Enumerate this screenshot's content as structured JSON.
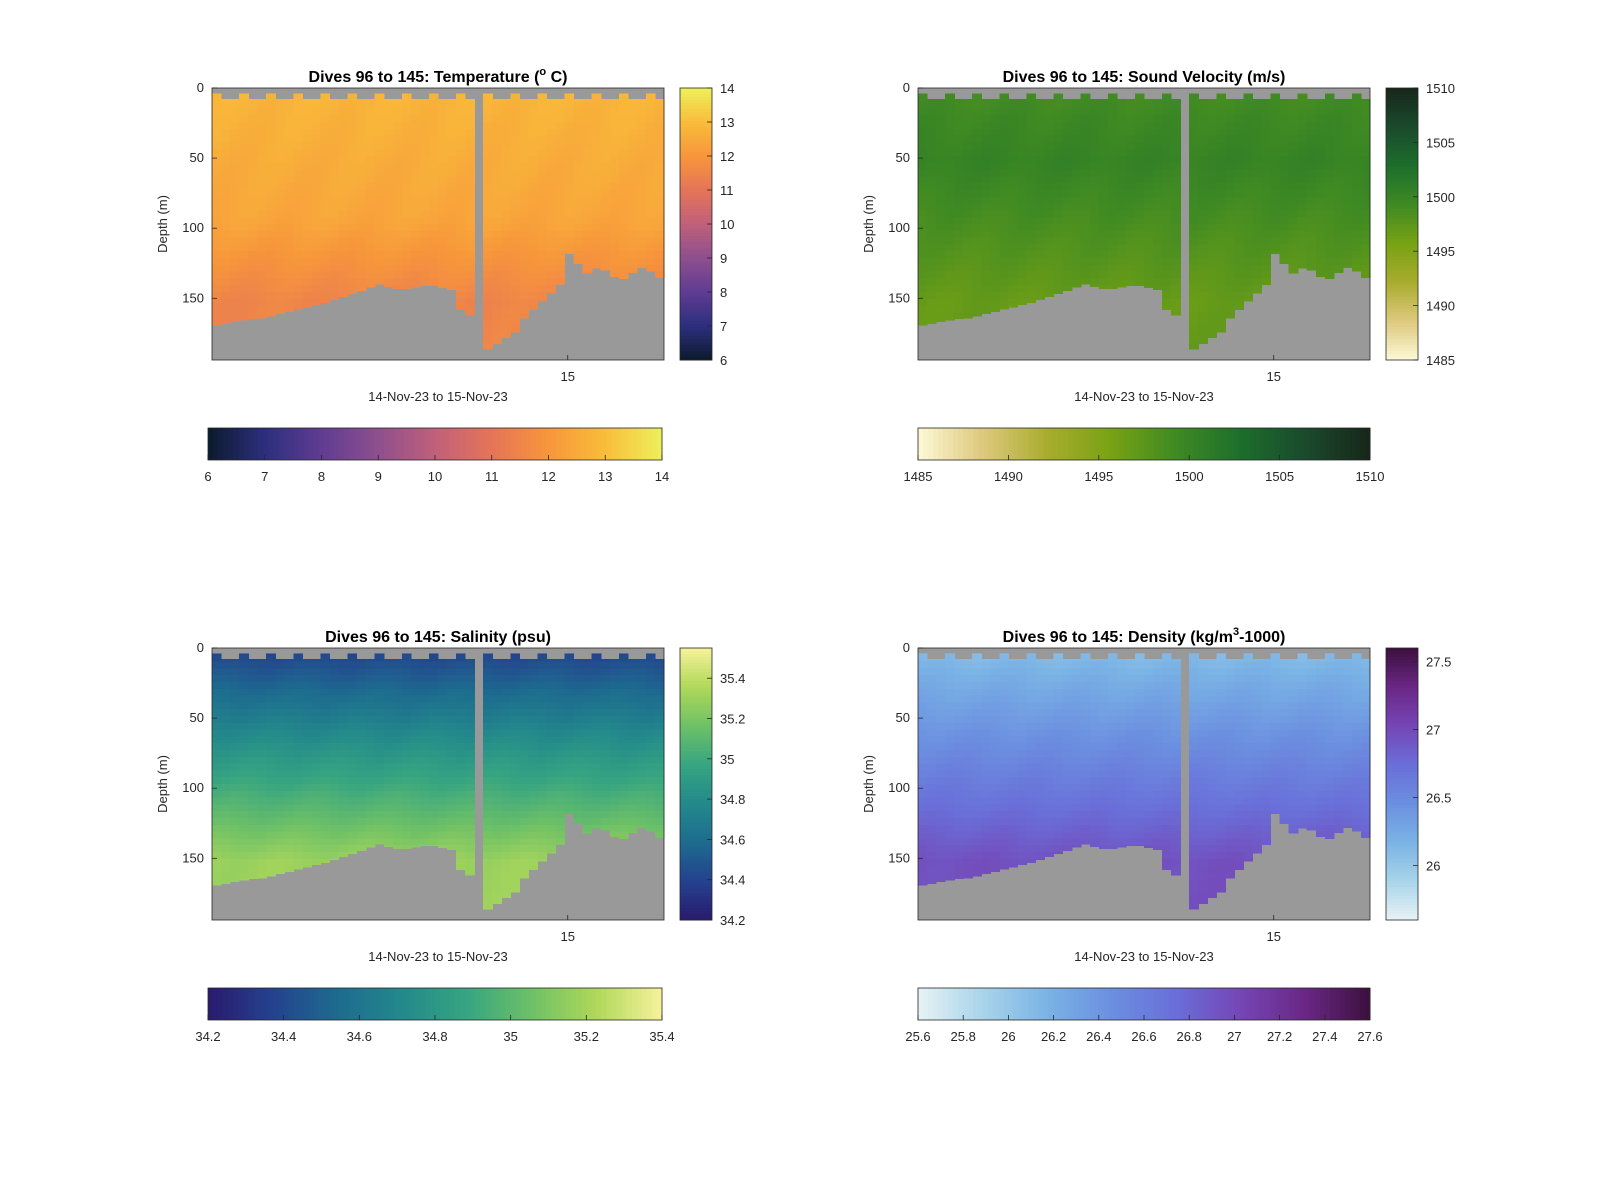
{
  "figure": {
    "background": "#ffffff",
    "land_color": "#999999",
    "date_range_label": "14-Nov-23 to 15-Nov-23",
    "ylabel": "Depth (m)"
  },
  "chart_data": [
    {
      "type": "heatmap",
      "id": "temperature",
      "title": "Dives 96 to 145: Temperature (",
      "title_sup": "o",
      "title_post": " C)",
      "xlabel": "14-Nov-23 to 15-Nov-23",
      "ylabel": "Depth (m)",
      "x_ticks": [
        {
          "value": 1,
          "label": "15"
        }
      ],
      "ylim": [
        0,
        194
      ],
      "y_ticks": [
        0,
        50,
        100,
        150
      ],
      "y_reversed": true,
      "clim": [
        6,
        14
      ],
      "colormap": [
        "#0a1a2c",
        "#2c2f7e",
        "#603c92",
        "#8e4f8e",
        "#c0607a",
        "#e57458",
        "#f7963b",
        "#f9bd3a",
        "#eef05c"
      ],
      "colorbar_ticks": [
        6,
        7,
        8,
        9,
        10,
        11,
        12,
        13,
        14
      ],
      "horizontal_colorbar_ticks": [
        6,
        7,
        8,
        9,
        10,
        11,
        12,
        13,
        14
      ],
      "profile": {
        "surface_value": 12.8,
        "mid_depth": 90,
        "mid_value": 12.4,
        "deep_value": 11.5
      }
    },
    {
      "type": "heatmap",
      "id": "sound_velocity",
      "title": "Dives 96 to 145: Sound Velocity (m/s)",
      "title_sup": "",
      "title_post": "",
      "xlabel": "14-Nov-23 to 15-Nov-23",
      "ylabel": "Depth (m)",
      "x_ticks": [
        {
          "value": 1,
          "label": "15"
        }
      ],
      "ylim": [
        0,
        194
      ],
      "y_ticks": [
        0,
        50,
        100,
        150
      ],
      "y_reversed": true,
      "clim": [
        1485,
        1510
      ],
      "colormap": [
        "#fdf8d6",
        "#ddc97c",
        "#a9ac2e",
        "#77a214",
        "#3f8a23",
        "#1c6e2c",
        "#1b4a2c",
        "#16261a"
      ],
      "colorbar_ticks": [
        1485,
        1490,
        1495,
        1500,
        1505,
        1510
      ],
      "horizontal_colorbar_ticks": [
        1485,
        1490,
        1495,
        1500,
        1505,
        1510
      ],
      "profile": {
        "surface_value": 1499.0,
        "mid_depth": 50,
        "mid_value": 1500.2,
        "deep_value": 1496.8
      }
    },
    {
      "type": "heatmap",
      "id": "salinity",
      "title": "Dives 96 to 145: Salinity (psu)",
      "title_sup": "",
      "title_post": "",
      "xlabel": "14-Nov-23 to 15-Nov-23",
      "ylabel": "Depth (m)",
      "x_ticks": [
        {
          "value": 1,
          "label": "15"
        }
      ],
      "ylim": [
        0,
        194
      ],
      "y_ticks": [
        0,
        50,
        100,
        150
      ],
      "y_reversed": true,
      "clim": [
        34.2,
        35.55
      ],
      "colormap": [
        "#2a1a6e",
        "#24428e",
        "#1d6b8f",
        "#23898b",
        "#37a581",
        "#6ec166",
        "#b0d85a",
        "#f7f29c"
      ],
      "colorbar_ticks": [
        34.2,
        34.4,
        34.6,
        34.8,
        35,
        35.2,
        35.4
      ],
      "horizontal_colorbar_ticks": [
        34.2,
        34.4,
        34.6,
        34.8,
        35,
        35.2,
        35.4
      ],
      "profile": {
        "surface_value": 34.4,
        "mid_depth": 70,
        "mid_value": 34.85,
        "deep_value": 35.3
      }
    },
    {
      "type": "heatmap",
      "id": "density",
      "title": "Dives 96 to 145: Density (kg/m",
      "title_sup": "3",
      "title_post": "-1000)",
      "xlabel": "14-Nov-23 to 15-Nov-23",
      "ylabel": "Depth (m)",
      "x_ticks": [
        {
          "value": 1,
          "label": "15"
        }
      ],
      "ylim": [
        0,
        194
      ],
      "y_ticks": [
        0,
        50,
        100,
        150
      ],
      "y_reversed": true,
      "clim": [
        25.6,
        27.6
      ],
      "colormap": [
        "#e7f2f4",
        "#a8d4ea",
        "#7ab3e5",
        "#6b8fe0",
        "#6a6ed8",
        "#7545b5",
        "#6a2785",
        "#3b0f3d"
      ],
      "colorbar_ticks": [
        26,
        26.5,
        27,
        27.5
      ],
      "horizontal_colorbar_ticks": [
        25.6,
        25.8,
        26,
        26.2,
        26.4,
        26.6,
        26.8,
        27,
        27.2,
        27.4,
        27.6
      ],
      "profile": {
        "surface_value": 26.1,
        "mid_depth": 80,
        "mid_value": 26.55,
        "deep_value": 26.95
      }
    }
  ]
}
